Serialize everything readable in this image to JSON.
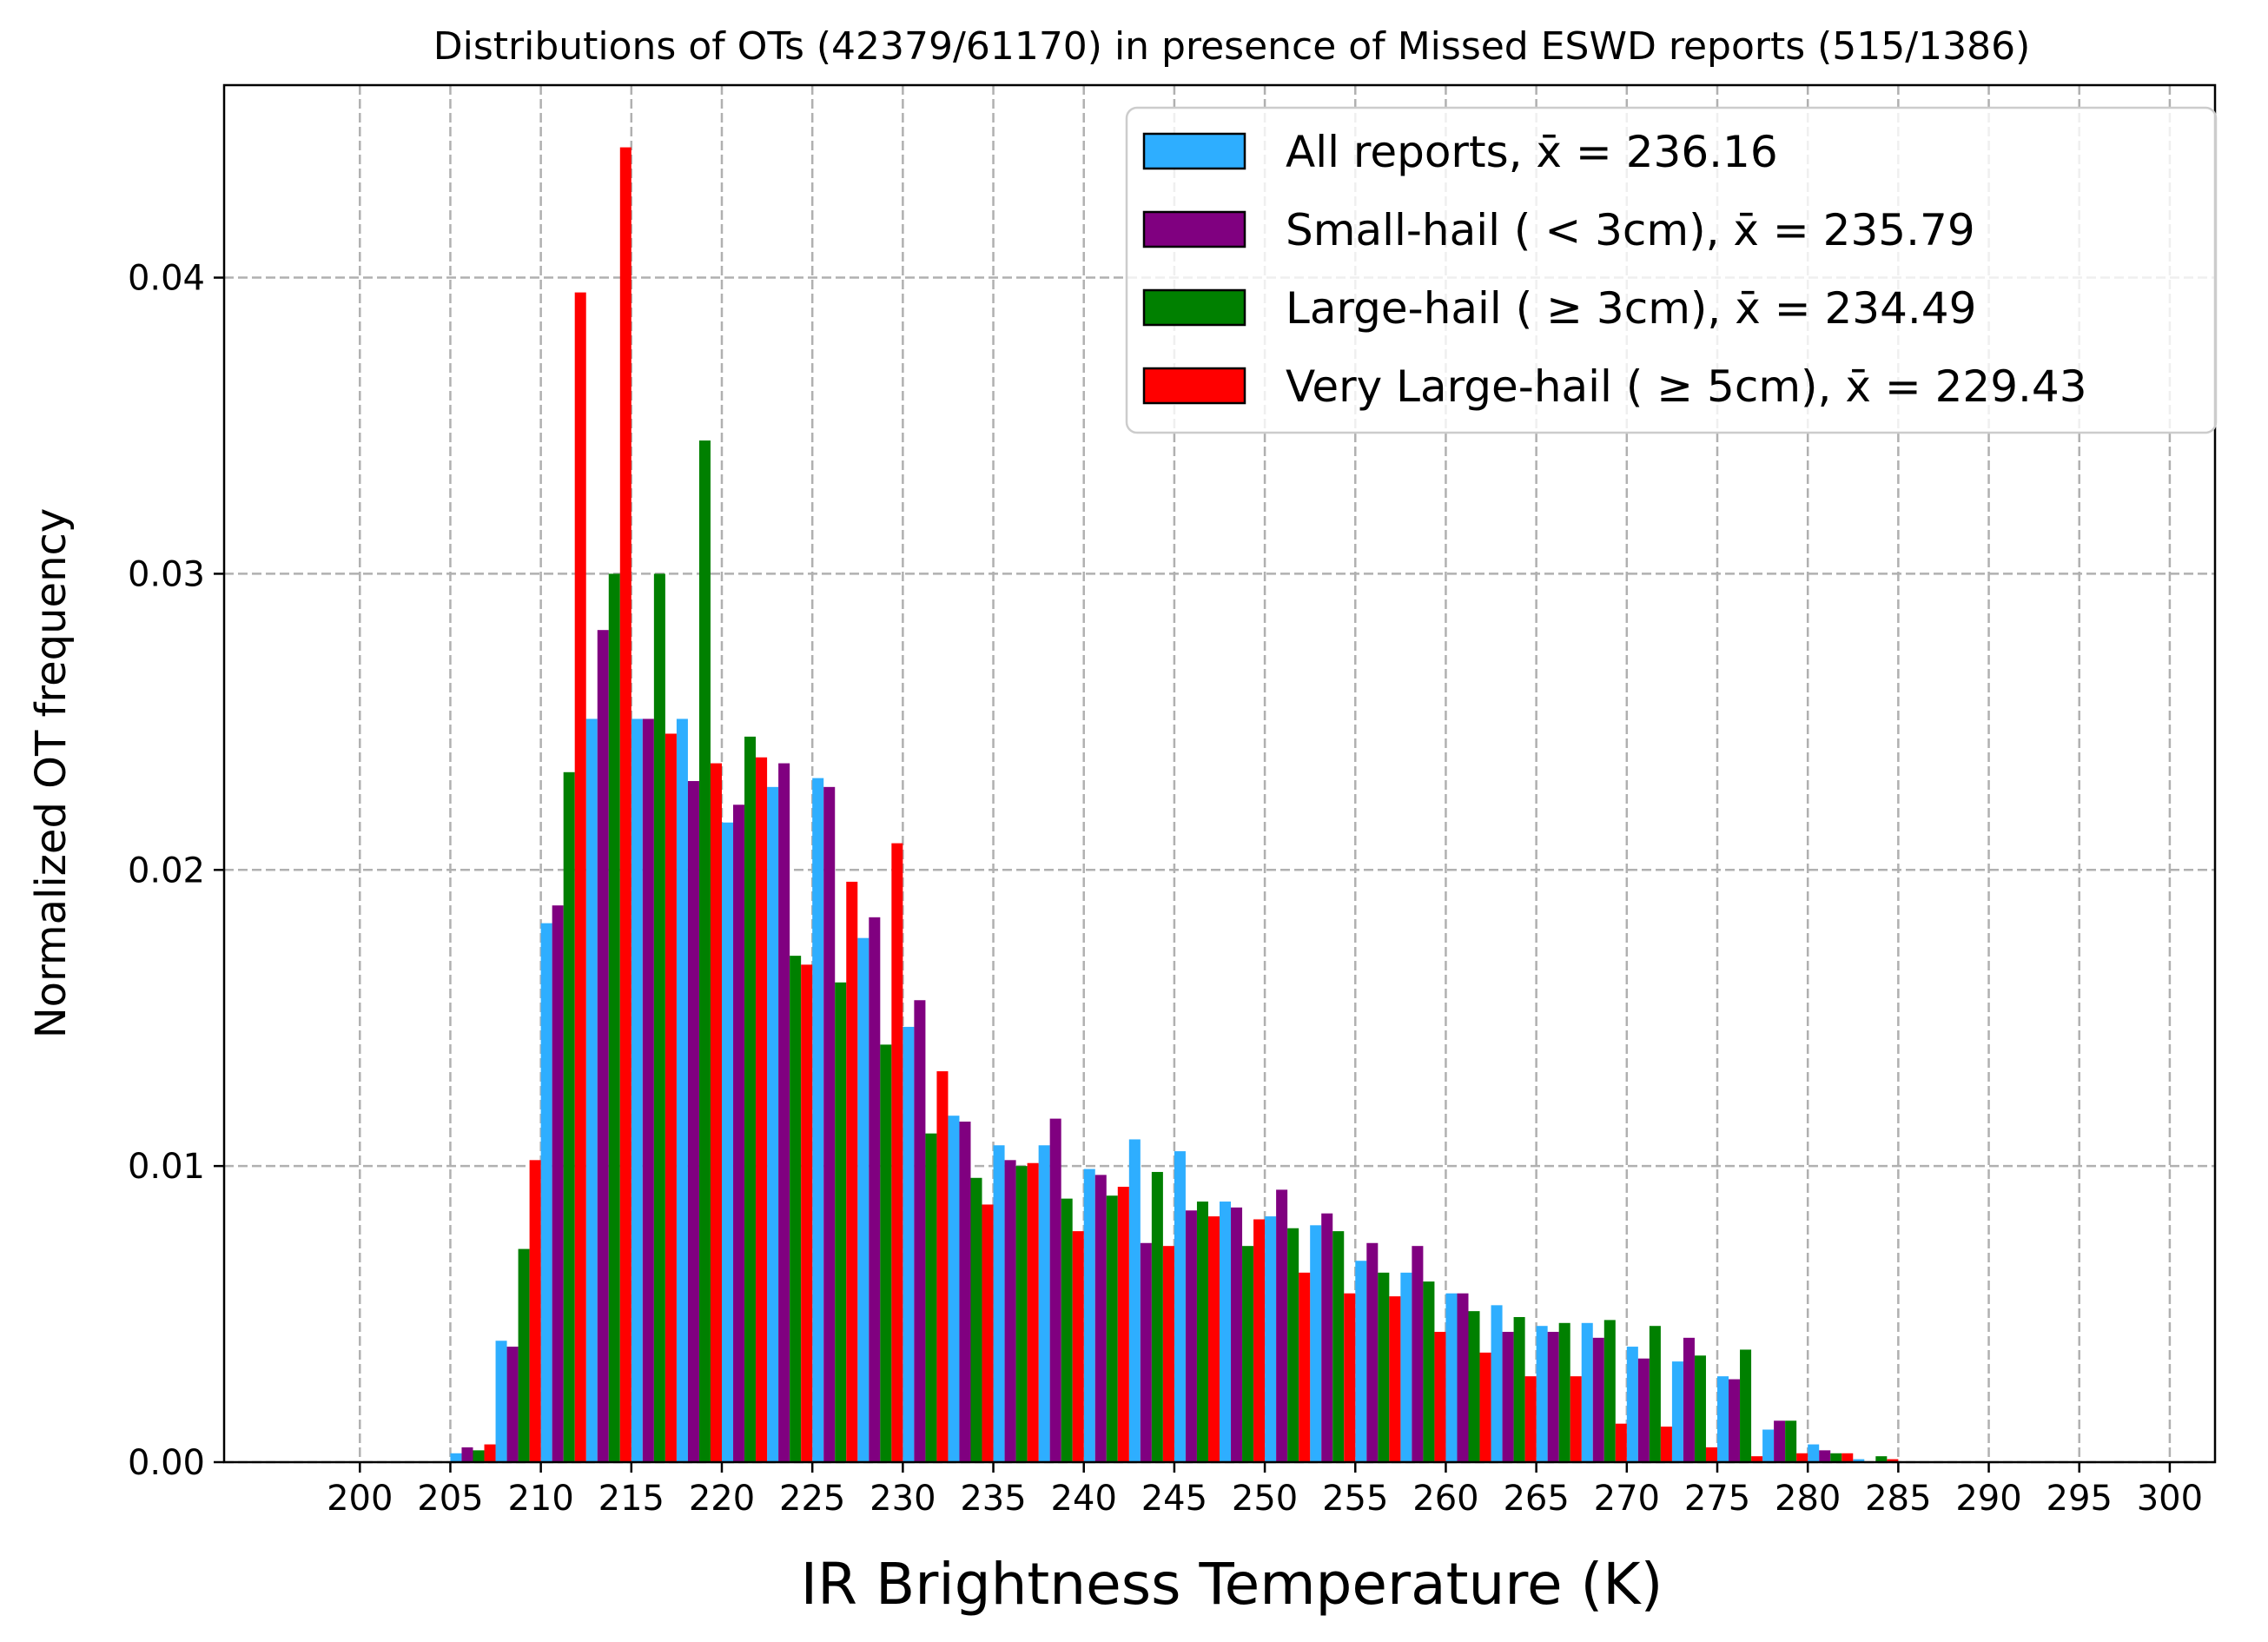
{
  "chart_data": {
    "type": "bar",
    "title": "Distributions of OTs (42379/61170) in presence of Missed ESWD reports (515/1386)",
    "xlabel": "IR Brightness Temperature (K)",
    "ylabel": "Normalized OT frequency",
    "xlim": [
      192.5,
      302.5
    ],
    "ylim": [
      0,
      0.0465
    ],
    "x_ticks": [
      200,
      205,
      210,
      215,
      220,
      225,
      230,
      235,
      240,
      245,
      250,
      255,
      260,
      265,
      270,
      275,
      280,
      285,
      290,
      295,
      300
    ],
    "x_tick_labels": [
      "200",
      "205",
      "210",
      "215",
      "220",
      "225",
      "230",
      "235",
      "240",
      "245",
      "250",
      "255",
      "260",
      "265",
      "270",
      "275",
      "280",
      "285",
      "290",
      "295",
      "300"
    ],
    "y_ticks": [
      0,
      0.01,
      0.02,
      0.03,
      0.04
    ],
    "y_tick_labels": [
      "0.00",
      "0.01",
      "0.02",
      "0.03",
      "0.04"
    ],
    "grid": true,
    "legend_position": "top-right",
    "bin_starts": [
      200,
      202.5,
      205,
      207.5,
      210,
      212.5,
      215,
      217.5,
      220,
      222.5,
      225,
      227.5,
      230,
      232.5,
      235,
      237.5,
      240,
      242.5,
      245,
      247.5,
      250,
      252.5,
      255,
      257.5,
      260,
      262.5,
      265,
      267.5,
      270,
      272.5,
      275,
      277.5,
      280,
      282.5,
      285,
      287.5,
      290,
      292.5,
      295,
      297.5
    ],
    "bin_width": 2.5,
    "series": [
      {
        "name": "All reports",
        "legend_label": "All reports, x̄ = 236.16",
        "color": "#2eaeff",
        "values": [
          0,
          0,
          0.0003,
          0.0041,
          0.0182,
          0.0251,
          0.0251,
          0.0251,
          0.0216,
          0.0228,
          0.0231,
          0.0177,
          0.0147,
          0.0117,
          0.0107,
          0.0107,
          0.0099,
          0.0109,
          0.0105,
          0.0088,
          0.0083,
          0.008,
          0.0068,
          0.0064,
          0.0057,
          0.0053,
          0.0046,
          0.0047,
          0.0039,
          0.0034,
          0.0029,
          0.0011,
          0.0006,
          0.0001,
          0,
          0,
          0,
          0,
          0,
          0
        ]
      },
      {
        "name": "Small-hail",
        "legend_label": "Small-hail ( < 3cm), x̄ = 235.79",
        "color": "#800080",
        "values": [
          0,
          0,
          0.0005,
          0.0039,
          0.0188,
          0.0281,
          0.0251,
          0.023,
          0.0222,
          0.0236,
          0.0228,
          0.0184,
          0.0156,
          0.0115,
          0.0102,
          0.0116,
          0.0097,
          0.0074,
          0.0085,
          0.0086,
          0.0092,
          0.0084,
          0.0074,
          0.0073,
          0.0057,
          0.0044,
          0.0044,
          0.0042,
          0.0035,
          0.0042,
          0.0028,
          0.0014,
          0.0004,
          0,
          0,
          0,
          0,
          0,
          0,
          0
        ]
      },
      {
        "name": "Large-hail",
        "legend_label": "Large-hail ( ≥ 3cm), x̄ = 234.49",
        "color": "#008000",
        "values": [
          0,
          0,
          0.0004,
          0.0072,
          0.0233,
          0.03,
          0.03,
          0.0345,
          0.0245,
          0.0171,
          0.0162,
          0.0141,
          0.0111,
          0.0096,
          0.01,
          0.0089,
          0.009,
          0.0098,
          0.0088,
          0.0073,
          0.0079,
          0.0078,
          0.0064,
          0.0061,
          0.0051,
          0.0049,
          0.0047,
          0.0048,
          0.0046,
          0.0036,
          0.0038,
          0.0014,
          0.0003,
          0.0002,
          0,
          0,
          0,
          0,
          0,
          0
        ]
      },
      {
        "name": "Very Large-hail",
        "legend_label": "Very Large-hail ( ≥ 5cm), x̄ = 229.43",
        "color": "#ff0000",
        "values": [
          0,
          0,
          0.0006,
          0.0102,
          0.0395,
          0.0444,
          0.0246,
          0.0236,
          0.0238,
          0.0168,
          0.0196,
          0.0209,
          0.0132,
          0.0087,
          0.0101,
          0.0078,
          0.0093,
          0.0073,
          0.0083,
          0.0082,
          0.0064,
          0.0057,
          0.0056,
          0.0044,
          0.0037,
          0.0029,
          0.0029,
          0.0013,
          0.0012,
          0.0005,
          0.0002,
          0.0003,
          0.0003,
          0.0001,
          0,
          0,
          0,
          0,
          0,
          0
        ]
      }
    ]
  }
}
